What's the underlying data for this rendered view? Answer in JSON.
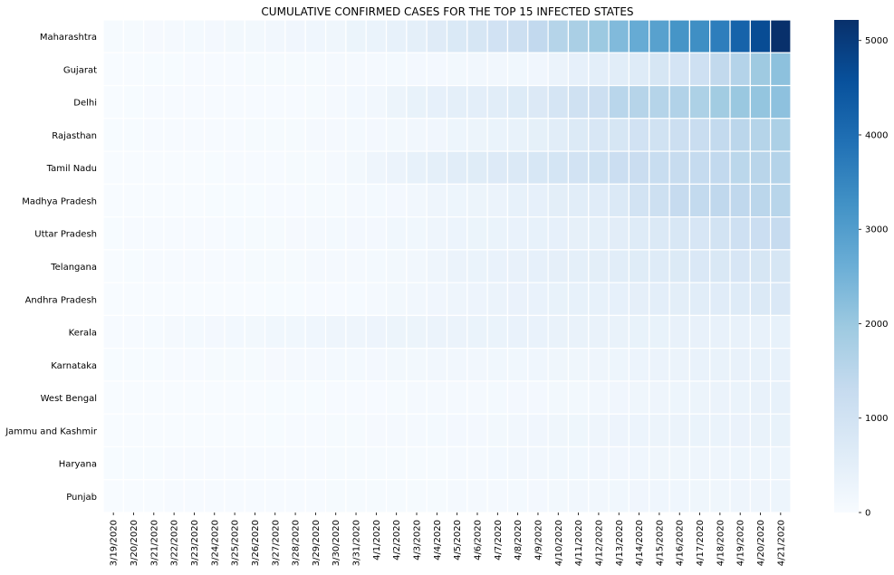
{
  "chart_data": {
    "type": "heatmap",
    "title": "CUMULATIVE CONFIRMED CASES FOR THE TOP 15 INFECTED STATES",
    "xlabel": "",
    "ylabel": "",
    "x": [
      "3/19/2020",
      "3/20/2020",
      "3/21/2020",
      "3/22/2020",
      "3/23/2020",
      "3/24/2020",
      "3/25/2020",
      "3/26/2020",
      "3/27/2020",
      "3/28/2020",
      "3/29/2020",
      "3/30/2020",
      "3/31/2020",
      "4/1/2020",
      "4/2/2020",
      "4/3/2020",
      "4/4/2020",
      "4/5/2020",
      "4/6/2020",
      "4/7/2020",
      "4/8/2020",
      "4/9/2020",
      "4/10/2020",
      "4/11/2020",
      "4/12/2020",
      "4/13/2020",
      "4/14/2020",
      "4/15/2020",
      "4/16/2020",
      "4/17/2020",
      "4/18/2020",
      "4/19/2020",
      "4/20/2020",
      "4/21/2020"
    ],
    "y": [
      "Maharashtra",
      "Gujarat",
      "Delhi",
      "Rajasthan",
      "Tamil Nadu",
      "Madhya Pradesh",
      "Uttar Pradesh",
      "Telangana",
      "Andhra Pradesh",
      "Kerala",
      "Karnataka",
      "West Bengal",
      "Jammu and Kashmir",
      "Haryana",
      "Punjab"
    ],
    "values": [
      [
        49,
        52,
        64,
        74,
        97,
        107,
        124,
        130,
        153,
        186,
        203,
        220,
        302,
        335,
        423,
        490,
        635,
        748,
        868,
        1018,
        1135,
        1364,
        1574,
        1761,
        1982,
        2334,
        2687,
        2916,
        3202,
        3323,
        3648,
        4200,
        4666,
        5218
      ],
      [
        5,
        7,
        14,
        14,
        29,
        33,
        38,
        43,
        44,
        53,
        58,
        69,
        74,
        87,
        95,
        105,
        108,
        128,
        144,
        165,
        179,
        186,
        308,
        432,
        516,
        572,
        650,
        871,
        930,
        1099,
        1376,
        1604,
        1939,
        2178
      ],
      [
        12,
        17,
        26,
        29,
        30,
        31,
        35,
        36,
        39,
        39,
        49,
        72,
        120,
        152,
        293,
        386,
        445,
        503,
        523,
        576,
        669,
        720,
        903,
        1069,
        1154,
        1510,
        1561,
        1578,
        1640,
        1707,
        1893,
        2003,
        2081,
        2156
      ],
      [
        15,
        17,
        23,
        28,
        32,
        36,
        38,
        43,
        54,
        59,
        69,
        79,
        93,
        108,
        129,
        167,
        191,
        253,
        288,
        328,
        383,
        463,
        561,
        700,
        804,
        873,
        1005,
        1023,
        1131,
        1229,
        1351,
        1478,
        1576,
        1735
      ],
      [
        2,
        3,
        3,
        6,
        9,
        15,
        23,
        29,
        35,
        42,
        50,
        67,
        124,
        234,
        309,
        411,
        485,
        571,
        621,
        690,
        738,
        834,
        911,
        969,
        1075,
        1173,
        1204,
        1242,
        1267,
        1323,
        1372,
        1477,
        1520,
        1596
      ],
      [
        4,
        4,
        4,
        4,
        7,
        14,
        15,
        20,
        30,
        33,
        47,
        47,
        66,
        98,
        104,
        154,
        229,
        256,
        290,
        315,
        411,
        435,
        532,
        564,
        604,
        730,
        987,
        1120,
        1299,
        1355,
        1402,
        1407,
        1485,
        1540
      ],
      [
        19,
        23,
        24,
        31,
        33,
        35,
        40,
        41,
        46,
        65,
        75,
        98,
        104,
        113,
        172,
        174,
        227,
        275,
        305,
        334,
        361,
        410,
        433,
        452,
        483,
        558,
        660,
        735,
        805,
        849,
        969,
        1084,
        1176,
        1294
      ],
      [
        13,
        16,
        21,
        22,
        32,
        36,
        39,
        44,
        50,
        56,
        67,
        71,
        77,
        96,
        127,
        154,
        229,
        321,
        334,
        364,
        404,
        442,
        473,
        503,
        531,
        562,
        624,
        650,
        700,
        766,
        791,
        844,
        858,
        874
      ],
      [
        2,
        3,
        3,
        4,
        6,
        7,
        9,
        11,
        14,
        19,
        21,
        23,
        40,
        86,
        132,
        161,
        190,
        226,
        266,
        314,
        348,
        363,
        381,
        405,
        420,
        432,
        475,
        525,
        534,
        572,
        603,
        646,
        722,
        757
      ],
      [
        27,
        28,
        40,
        67,
        95,
        109,
        118,
        137,
        176,
        182,
        202,
        234,
        241,
        265,
        286,
        295,
        306,
        314,
        327,
        345,
        357,
        364,
        373,
        374,
        375,
        376,
        379,
        387,
        394,
        396,
        399,
        400,
        402,
        407
      ],
      [
        14,
        15,
        20,
        26,
        37,
        41,
        51,
        55,
        64,
        76,
        83,
        98,
        101,
        110,
        124,
        128,
        144,
        151,
        163,
        175,
        181,
        197,
        207,
        214,
        247,
        260,
        279,
        313,
        315,
        359,
        371,
        390,
        408,
        418
      ],
      [
        2,
        2,
        3,
        4,
        7,
        9,
        10,
        11,
        15,
        17,
        18,
        22,
        27,
        37,
        53,
        69,
        69,
        80,
        91,
        99,
        116,
        116,
        126,
        134,
        150,
        190,
        213,
        231,
        255,
        287,
        310,
        339,
        392,
        423
      ],
      [
        4,
        4,
        4,
        4,
        4,
        4,
        7,
        13,
        18,
        33,
        38,
        49,
        55,
        62,
        70,
        75,
        92,
        106,
        109,
        125,
        158,
        184,
        207,
        224,
        245,
        270,
        278,
        300,
        314,
        328,
        341,
        350,
        368,
        380
      ],
      [
        17,
        17,
        17,
        21,
        26,
        29,
        30,
        33,
        33,
        36,
        36,
        43,
        43,
        43,
        49,
        49,
        54,
        84,
        90,
        118,
        150,
        167,
        170,
        179,
        185,
        185,
        199,
        205,
        209,
        225,
        233,
        250,
        254,
        254
      ],
      [
        1,
        2,
        2,
        21,
        21,
        29,
        33,
        33,
        33,
        38,
        38,
        41,
        41,
        46,
        46,
        53,
        57,
        68,
        79,
        91,
        99,
        117,
        137,
        151,
        167,
        176,
        186,
        197,
        202,
        211,
        219,
        244,
        245,
        251
      ]
    ],
    "colorbar": {
      "min": 0,
      "max": 5218,
      "ticks": [
        0,
        1000,
        2000,
        3000,
        4000,
        5000
      ]
    },
    "colormap": [
      "#f7fbff",
      "#deebf7",
      "#c6dbef",
      "#9ecae1",
      "#6baed6",
      "#4292c6",
      "#2171b5",
      "#08519c",
      "#08306b"
    ],
    "grid": false,
    "legend": "colorbar-right"
  }
}
